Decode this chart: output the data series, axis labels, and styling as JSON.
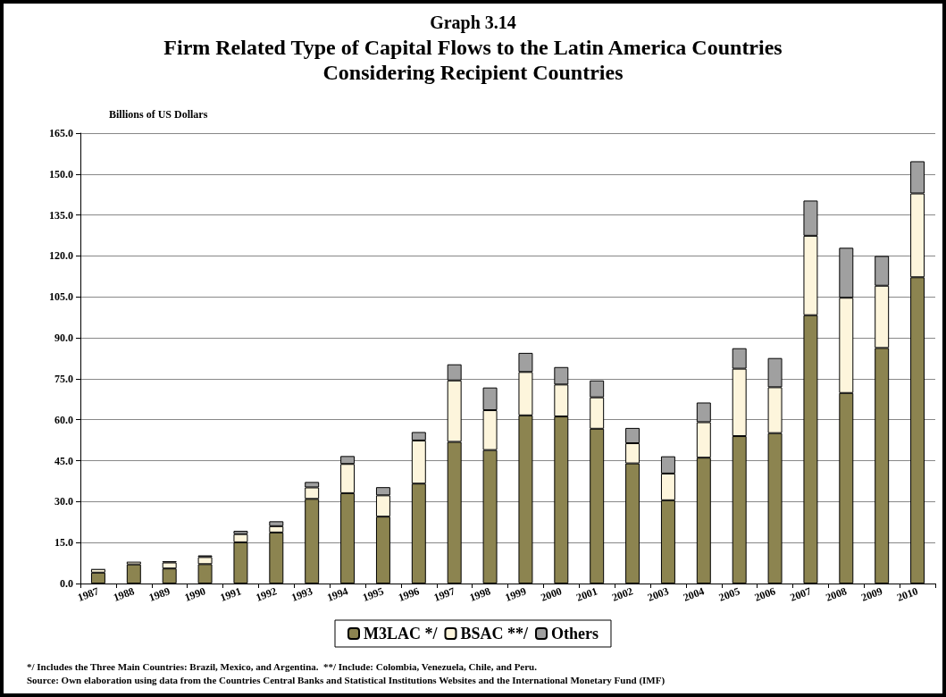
{
  "chart_data": {
    "type": "bar",
    "stacked": true,
    "title": "Graph 3.14",
    "subtitle": "Firm Related Type of Capital Flows to the Latin America Countries\nConsidering Recipient Countries",
    "ylabel": "Billions of US Dollars",
    "categories": [
      "1987",
      "1988",
      "1989",
      "1990",
      "1991",
      "1992",
      "1993",
      "1994",
      "1995",
      "1996",
      "1997",
      "1998",
      "1999",
      "2000",
      "2001",
      "2002",
      "2003",
      "2004",
      "2005",
      "2006",
      "2007",
      "2008",
      "2009",
      "2010"
    ],
    "series": [
      {
        "name": "M3LAC */",
        "color": "#8c8450",
        "values": [
          4.0,
          7.0,
          5.5,
          7.1,
          15.1,
          18.7,
          31.0,
          33.1,
          24.5,
          36.6,
          51.9,
          48.9,
          61.6,
          61.2,
          56.7,
          44.0,
          30.5,
          46.1,
          54.0,
          55.1,
          98.3,
          69.8,
          86.3,
          112.2
        ]
      },
      {
        "name": "BSAC **/",
        "color": "#fdf5dc",
        "values": [
          1.3,
          1.0,
          2.2,
          2.6,
          3.0,
          2.3,
          4.2,
          10.7,
          7.8,
          15.8,
          22.5,
          14.6,
          15.9,
          11.7,
          11.5,
          7.4,
          9.8,
          13.0,
          24.7,
          16.8,
          29.1,
          34.9,
          22.8,
          30.7
        ]
      },
      {
        "name": "Others",
        "color": "#a0a0a0",
        "values": [
          0.2,
          0.2,
          0.5,
          0.6,
          1.2,
          1.8,
          2.0,
          2.9,
          3.0,
          3.1,
          5.9,
          8.3,
          7.0,
          6.4,
          6.2,
          5.6,
          6.3,
          7.2,
          7.5,
          10.7,
          12.9,
          18.3,
          10.9,
          11.8
        ]
      }
    ],
    "ylim": [
      0,
      165
    ],
    "yticks": [
      {
        "value": 0,
        "label": "0.0"
      },
      {
        "value": 15,
        "label": "15.0"
      },
      {
        "value": 30,
        "label": "30.0"
      },
      {
        "value": 45,
        "label": "45.0"
      },
      {
        "value": 60,
        "label": "60.0"
      },
      {
        "value": 75,
        "label": "75.0"
      },
      {
        "value": 90,
        "label": "90.0"
      },
      {
        "value": 105,
        "label": "105.0"
      },
      {
        "value": 120,
        "label": "120.0"
      },
      {
        "value": 135,
        "label": "135.0"
      },
      {
        "value": 150,
        "label": "150.0"
      },
      {
        "value": 165,
        "label": "165.0"
      }
    ],
    "grid": "y",
    "legend": "bottom",
    "annotations": [
      "*/ Includes the Three Main Countries: Brazil, Mexico, and Argentina.  **/ Include: Colombia, Venezuela, Chile, and Peru.",
      "Source: Own elaboration using data from the Countries Central Banks and Statistical Institutions Websites and the International Monetary Fund (IMF)"
    ]
  }
}
